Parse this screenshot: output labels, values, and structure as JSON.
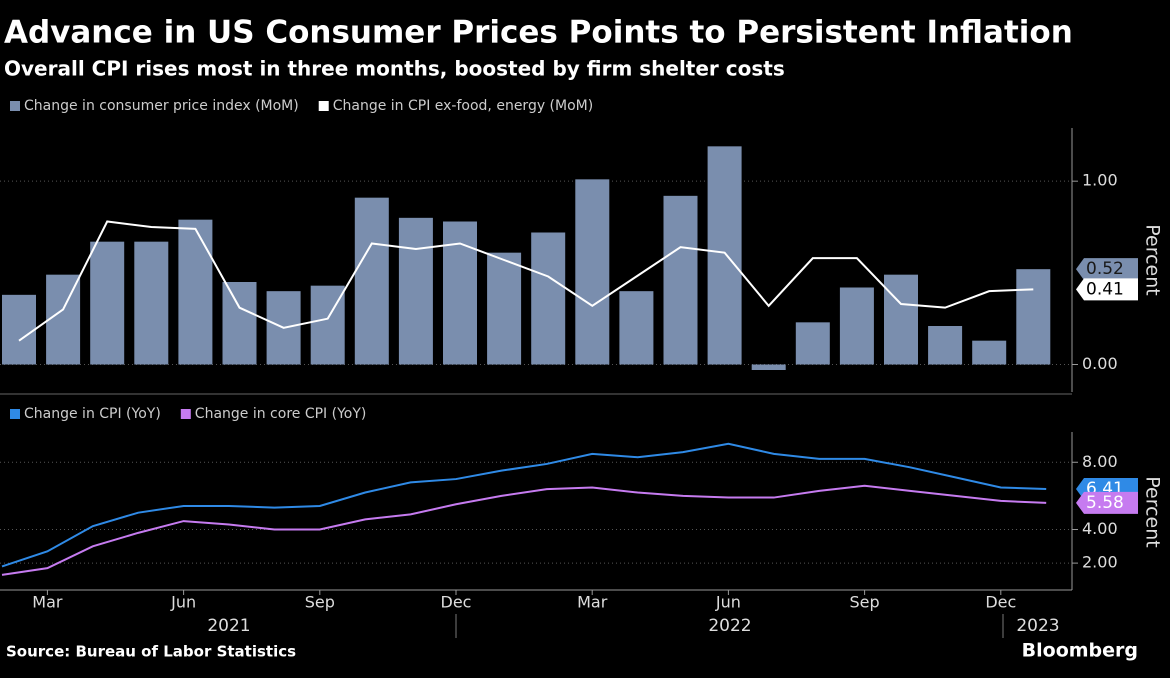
{
  "source": "Source: Bureau of Labor Statistics",
  "brand": "Bloomberg",
  "chart_data": [
    {
      "type": "bar",
      "title": "Advance in US Consumer Prices Points to Persistent Inflation",
      "subtitle": "Overall CPI rises most in three months, boosted by firm shelter costs",
      "ylabel": "Percent",
      "ylim": [
        -0.15,
        1.29
      ],
      "yticks": [
        {
          "value": 0,
          "label": "0.00"
        },
        {
          "value": 1,
          "label": "1.00"
        }
      ],
      "grid": true,
      "series": [
        {
          "name": "Change in consumer price index (MoM)",
          "color": "#7a8eae",
          "type": "bar",
          "values": [
            0.38,
            0.49,
            0.67,
            0.67,
            0.79,
            0.45,
            0.4,
            0.43,
            0.91,
            0.8,
            0.78,
            0.61,
            0.72,
            1.01,
            0.4,
            0.92,
            1.19,
            -0.03,
            0.23,
            0.42,
            0.49,
            0.21,
            0.13,
            0.52
          ],
          "end_label": "0.52"
        },
        {
          "name": "Change in CPI ex-food, energy (MoM)",
          "color": "#ffffff",
          "type": "line",
          "values": [
            0.13,
            0.3,
            0.78,
            0.75,
            0.74,
            0.31,
            0.2,
            0.25,
            0.66,
            0.63,
            0.66,
            0.57,
            0.48,
            0.32,
            0.48,
            0.64,
            0.61,
            0.32,
            0.58,
            0.58,
            0.33,
            0.31,
            0.4,
            0.41
          ],
          "end_label": "0.41"
        }
      ]
    },
    {
      "type": "line",
      "ylabel": "Percent",
      "ylim": [
        0.4,
        9.8
      ],
      "yticks": [
        {
          "value": 2,
          "label": "2.00"
        },
        {
          "value": 4,
          "label": "4.00"
        },
        {
          "value": 8,
          "label": "8.00"
        }
      ],
      "grid": true,
      "categories": [
        null,
        "Mar",
        null,
        null,
        "Jun",
        null,
        null,
        "Sep",
        null,
        null,
        "Dec",
        null,
        null,
        "Mar",
        null,
        null,
        "Jun",
        null,
        null,
        "Sep",
        null,
        null,
        "Dec",
        null
      ],
      "years": [
        "2021",
        "2022",
        "2023"
      ],
      "series": [
        {
          "name": "Change in CPI (YoY)",
          "color": "#2f8ae6",
          "values": [
            1.8,
            2.7,
            4.2,
            5.0,
            5.4,
            5.4,
            5.3,
            5.4,
            6.2,
            6.8,
            7.0,
            7.5,
            7.9,
            8.5,
            8.3,
            8.6,
            9.1,
            8.5,
            8.2,
            8.2,
            7.7,
            7.1,
            6.5,
            6.41
          ],
          "end_label": "6.41"
        },
        {
          "name": "Change in core CPI (YoY)",
          "color": "#c67bf0",
          "values": [
            1.3,
            1.7,
            3.0,
            3.8,
            4.5,
            4.3,
            4.0,
            4.0,
            4.6,
            4.9,
            5.5,
            6.0,
            6.4,
            6.5,
            6.2,
            6.0,
            5.9,
            5.9,
            6.3,
            6.6,
            6.3,
            6.0,
            5.7,
            5.58
          ],
          "end_label": "5.58"
        }
      ]
    }
  ]
}
